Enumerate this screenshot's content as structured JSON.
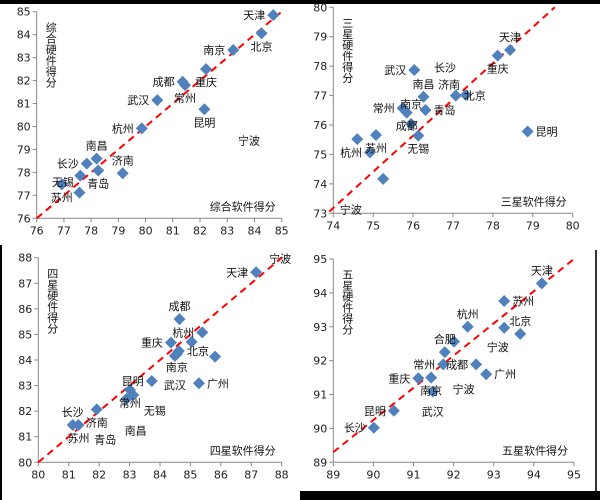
{
  "colors": {
    "marker": "#4F81BD",
    "diagonal": "#FF0000",
    "frame": "#000000"
  },
  "chart_data": [
    {
      "type": "scatter",
      "xlabel": "综合软件得分",
      "ylabel": "综合硬件得分",
      "xlim": [
        76,
        85
      ],
      "ylim": [
        76,
        85
      ],
      "xticks": [
        76,
        77,
        78,
        79,
        80,
        81,
        82,
        83,
        84,
        85
      ],
      "yticks": [
        76,
        77,
        78,
        79,
        80,
        81,
        82,
        83,
        84,
        85
      ],
      "reference_line": {
        "style": "red-dashed",
        "from": [
          76,
          76
        ],
        "to": [
          85,
          85
        ]
      },
      "points": [
        {
          "label": "天津",
          "x": 84.69,
          "y": 84.85,
          "pos": "left"
        },
        {
          "label": "北京",
          "x": 84.26,
          "y": 84.06,
          "pos": "below"
        },
        {
          "label": "南京",
          "x": 83.22,
          "y": 83.33,
          "pos": "left"
        },
        {
          "label": "重庆",
          "x": 82.22,
          "y": 82.5,
          "pos": "below"
        },
        {
          "label": "成都",
          "x": 81.36,
          "y": 81.95,
          "pos": "above"
        },
        {
          "label": "常州",
          "x": 81.45,
          "y": 81.8,
          "pos": "below"
        },
        {
          "label": "昆明",
          "x": 82.16,
          "y": 80.75,
          "pos": "below"
        },
        {
          "label": "武汉",
          "x": 80.43,
          "y": 81.15,
          "pos": "above"
        },
        {
          "label": "杭州",
          "x": 79.86,
          "y": 79.92,
          "pos": "above"
        },
        {
          "label": "南昌",
          "x": 78.2,
          "y": 78.6,
          "pos": "above"
        },
        {
          "label": "长沙",
          "x": 77.84,
          "y": 78.38,
          "pos": "left"
        },
        {
          "label": "青岛",
          "x": 78.26,
          "y": 78.08,
          "pos": "below"
        },
        {
          "label": "济南",
          "x": 79.16,
          "y": 77.96,
          "pos": "above"
        },
        {
          "label": "苏州",
          "x": 76.92,
          "y": 77.48,
          "pos": "left"
        },
        {
          "label": "无锡",
          "x": 77.57,
          "y": 77.12,
          "pos": "below"
        },
        {
          "label": "",
          "x": 77.6,
          "y": 77.86,
          "pos": "none"
        }
      ],
      "annotations": [
        {
          "text": "宁波",
          "x": 83.8,
          "y": 79.4
        }
      ]
    },
    {
      "type": "scatter",
      "xlabel": "三星软件得分",
      "ylabel": "三星硬件得分",
      "xlim": [
        74,
        80
      ],
      "ylim": [
        73,
        80
      ],
      "xticks": [
        74,
        75,
        76,
        77,
        78,
        79,
        80
      ],
      "yticks": [
        73,
        74,
        75,
        76,
        77,
        78,
        79,
        80
      ],
      "reference_line": {
        "style": "red-dashed",
        "from": [
          73.9,
          73.06
        ],
        "to": [
          79.55,
          80
        ]
      },
      "points": [
        {
          "label": "天津",
          "x": 78.43,
          "y": 78.55,
          "pos": "above"
        },
        {
          "label": "重庆",
          "x": 78.12,
          "y": 78.36,
          "pos": "below"
        },
        {
          "label": "武汉",
          "x": 76.03,
          "y": 77.87,
          "pos": "left"
        },
        {
          "label": "南昌",
          "x": 76.26,
          "y": 76.96,
          "pos": "above"
        },
        {
          "label": "青岛",
          "x": 76.31,
          "y": 76.51,
          "pos": "right"
        },
        {
          "label": "北京",
          "x": 77.07,
          "y": 77.0,
          "pos": "below"
        },
        {
          "label": "济南",
          "x": 77.32,
          "y": 77.02,
          "pos": "right"
        },
        {
          "label": "常州",
          "x": 75.74,
          "y": 76.57,
          "pos": "left"
        },
        {
          "label": "成都",
          "x": 75.84,
          "y": 76.42,
          "pos": "right"
        },
        {
          "label": "南京",
          "x": 75.95,
          "y": 76.04,
          "pos": "left"
        },
        {
          "label": "无锡",
          "x": 76.13,
          "y": 75.64,
          "pos": "below"
        },
        {
          "label": "苏州",
          "x": 75.07,
          "y": 75.66,
          "pos": "below"
        },
        {
          "label": "杭州",
          "x": 74.92,
          "y": 75.07,
          "pos": "right"
        },
        {
          "label": "昆明",
          "x": 78.87,
          "y": 75.78,
          "pos": "right"
        },
        {
          "label": "",
          "x": 74.6,
          "y": 75.52,
          "pos": "none"
        },
        {
          "label": "",
          "x": 75.25,
          "y": 74.17,
          "pos": "none"
        }
      ],
      "annotations": [
        {
          "text": "长沙",
          "x": 76.8,
          "y": 77.95
        },
        {
          "text": "宁波",
          "x": 73.9,
          "y": 72.6
        }
      ]
    },
    {
      "type": "scatter",
      "xlabel": "四星软件得分",
      "ylabel": "四星硬件得分",
      "xlim": [
        80,
        88
      ],
      "ylim": [
        80,
        88
      ],
      "xticks": [
        80,
        81,
        82,
        83,
        84,
        85,
        86,
        87,
        88
      ],
      "yticks": [
        80,
        81,
        82,
        83,
        84,
        85,
        86,
        87,
        88
      ],
      "reference_line": {
        "style": "red-dashed",
        "from": [
          80,
          80
        ],
        "to": [
          88,
          88
        ]
      },
      "points": [
        {
          "label": "天津",
          "x": 87.16,
          "y": 87.43,
          "pos": "left"
        },
        {
          "label": "成都",
          "x": 84.64,
          "y": 85.6,
          "pos": "above"
        },
        {
          "label": "杭州",
          "x": 85.39,
          "y": 85.08,
          "pos": "above"
        },
        {
          "label": "",
          "x": 85.04,
          "y": 84.71,
          "pos": "none"
        },
        {
          "label": "重庆",
          "x": 84.36,
          "y": 84.68,
          "pos": "left"
        },
        {
          "label": "北京",
          "x": 84.62,
          "y": 84.35,
          "pos": "right"
        },
        {
          "label": "南京",
          "x": 84.55,
          "y": 84.23,
          "pos": "below"
        },
        {
          "label": "武汉",
          "x": 84.49,
          "y": 84.16,
          "pos": "left"
        },
        {
          "label": "",
          "x": 85.81,
          "y": 84.13,
          "pos": "none"
        },
        {
          "label": "广州",
          "x": 85.28,
          "y": 83.09,
          "pos": "right"
        },
        {
          "label": "昆明",
          "x": 83.73,
          "y": 83.18,
          "pos": "below"
        },
        {
          "label": "常州",
          "x": 83.01,
          "y": 82.83,
          "pos": "left"
        },
        {
          "label": "无锡",
          "x": 83.12,
          "y": 82.63,
          "pos": "below"
        },
        {
          "label": "",
          "x": 82.9,
          "y": 82.48,
          "pos": "none"
        },
        {
          "label": "长沙",
          "x": 81.13,
          "y": 81.46,
          "pos": "above"
        },
        {
          "label": "苏州",
          "x": 81.32,
          "y": 81.46,
          "pos": "below"
        },
        {
          "label": "济南",
          "x": 81.92,
          "y": 82.07,
          "pos": "below"
        }
      ],
      "annotations": [
        {
          "text": "宁波",
          "x": 87.95,
          "y": 87.96
        },
        {
          "text": "青岛",
          "x": 82.2,
          "y": 80.9
        },
        {
          "text": "南昌",
          "x": 83.2,
          "y": 81.25
        }
      ]
    },
    {
      "type": "scatter",
      "xlabel": "五星软件得分",
      "ylabel": "五星硬件得分",
      "xlim": [
        89,
        95
      ],
      "ylim": [
        89,
        95
      ],
      "xticks": [
        89,
        90,
        91,
        92,
        93,
        94,
        95
      ],
      "yticks": [
        89,
        90,
        91,
        92,
        93,
        94,
        95
      ],
      "reference_line": {
        "style": "red-dashed",
        "from": [
          89,
          89.3
        ],
        "to": [
          95,
          95
        ]
      },
      "points": [
        {
          "label": "天津",
          "x": 94.2,
          "y": 94.28,
          "pos": "above"
        },
        {
          "label": "苏州",
          "x": 93.26,
          "y": 93.76,
          "pos": "right"
        },
        {
          "label": "",
          "x": 93.26,
          "y": 92.97,
          "pos": "none"
        },
        {
          "label": "北京",
          "x": 93.66,
          "y": 92.79,
          "pos": "above"
        },
        {
          "label": "杭州",
          "x": 92.35,
          "y": 93.0,
          "pos": "above"
        },
        {
          "label": "",
          "x": 92.01,
          "y": 92.56,
          "pos": "none"
        },
        {
          "label": "合肥",
          "x": 91.78,
          "y": 92.25,
          "pos": "above"
        },
        {
          "label": "常州",
          "x": 91.74,
          "y": 91.89,
          "pos": "left"
        },
        {
          "label": "成都",
          "x": 92.56,
          "y": 91.89,
          "pos": "left"
        },
        {
          "label": "广州",
          "x": 92.81,
          "y": 91.6,
          "pos": "right"
        },
        {
          "label": "南京",
          "x": 91.44,
          "y": 91.5,
          "pos": "left"
        },
        {
          "label": "重庆",
          "x": 91.12,
          "y": 91.48,
          "pos": "left"
        },
        {
          "label": "武汉",
          "x": 91.48,
          "y": 91.09,
          "pos": "below"
        },
        {
          "label": "昆明",
          "x": 90.51,
          "y": 90.52,
          "pos": "left"
        },
        {
          "label": "长沙",
          "x": 90.01,
          "y": 90.02,
          "pos": "left"
        }
      ],
      "annotations": [
        {
          "text": "宁波",
          "x": 93.1,
          "y": 92.78
        },
        {
          "text": "宁波",
          "x": 92.25,
          "y": 91.55
        }
      ]
    }
  ]
}
